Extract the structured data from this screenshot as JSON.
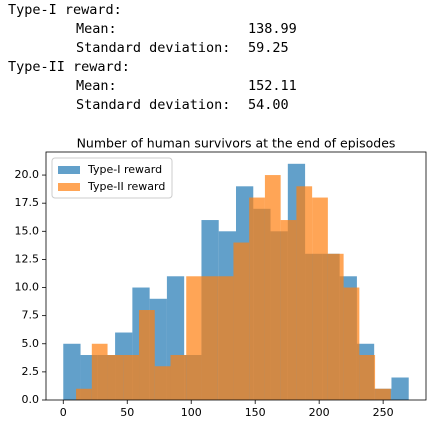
{
  "output": [
    {
      "heading": "Type-I reward:",
      "stats": [
        {
          "label": "Mean:",
          "value": "138.99"
        },
        {
          "label": "Standard deviation:",
          "value": "59.25"
        }
      ]
    },
    {
      "heading": "Type-II reward:",
      "stats": [
        {
          "label": "Mean:",
          "value": "152.11"
        },
        {
          "label": "Standard deviation:",
          "value": "54.00"
        }
      ]
    }
  ],
  "chart_data": {
    "type": "histogram",
    "title": "Number of human survivors at the end of episodes",
    "series": [
      {
        "name": "Type-I reward",
        "color": "#1f77b4",
        "bins": [
          0,
          13.5,
          27,
          40.5,
          54,
          67.5,
          81,
          94.5,
          108,
          121.5,
          135,
          148.5,
          162,
          175.5,
          189,
          202.5,
          216,
          229.5,
          243,
          256.5,
          270
        ],
        "values": [
          5,
          4,
          4,
          6,
          10,
          9,
          11,
          4,
          16,
          15,
          19,
          17,
          15,
          21,
          13,
          13,
          11,
          5,
          1,
          2
        ]
      },
      {
        "name": "Type-II reward",
        "color": "#ff7f0e",
        "bins": [
          10,
          22.3,
          34.6,
          46.9,
          59.2,
          71.5,
          83.8,
          96.1,
          108.4,
          120.7,
          133,
          145.3,
          157.6,
          169.9,
          182.2,
          194.5,
          206.8,
          219.1,
          231.4,
          243.7,
          256
        ],
        "values": [
          1,
          5,
          4,
          4,
          8,
          3,
          4,
          11,
          11,
          11,
          14,
          18,
          20,
          16,
          19,
          18,
          13,
          10,
          4,
          1
        ]
      }
    ],
    "alpha": 0.7,
    "xlim": [
      -13.5,
      283.5
    ],
    "xticks": [
      0,
      50,
      100,
      150,
      200,
      250
    ],
    "ylim": [
      0,
      22.05
    ],
    "yticks": [
      {
        "value": 0,
        "label": "0.0"
      },
      {
        "value": 2.5,
        "label": "2.5"
      },
      {
        "value": 5,
        "label": "5.0"
      },
      {
        "value": 7.5,
        "label": "7.5"
      },
      {
        "value": 10,
        "label": "10.0"
      },
      {
        "value": 12.5,
        "label": "12.5"
      },
      {
        "value": 15,
        "label": "15.0"
      },
      {
        "value": 17.5,
        "label": "17.5"
      },
      {
        "value": 20,
        "label": "20.0"
      }
    ],
    "legend": "upper left",
    "grid": false
  }
}
